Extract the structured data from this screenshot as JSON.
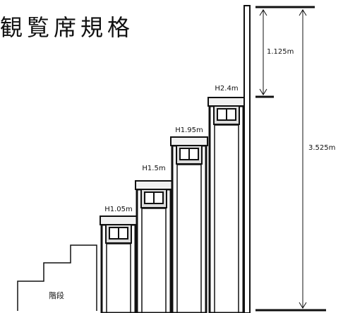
{
  "title": "観覧席規格",
  "stairs_label": "階段",
  "tiers": [
    {
      "height_label": "H1.05m"
    },
    {
      "height_label": "H1.5m"
    },
    {
      "height_label": "H1.95m"
    },
    {
      "height_label": "H2.4m"
    }
  ],
  "dimensions": {
    "upper_gap": "1.125m",
    "total_height": "3.525m"
  }
}
